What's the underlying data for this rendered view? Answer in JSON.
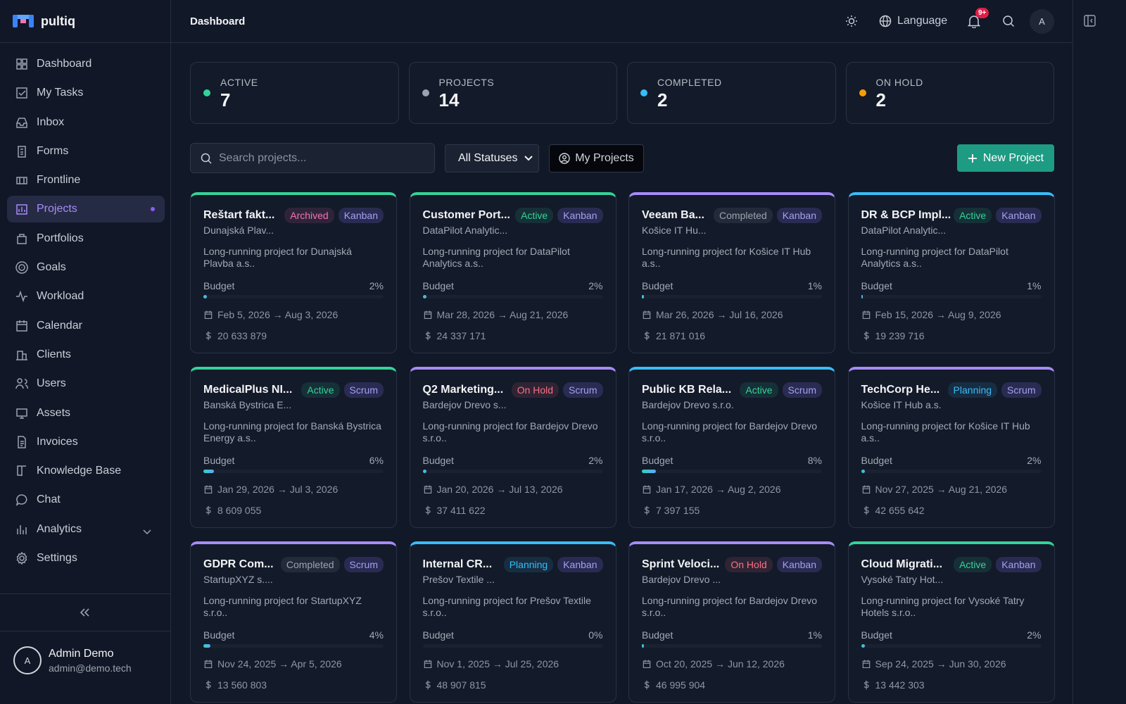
{
  "sidebar": {
    "brand": "pultiq",
    "nav": [
      "Dashboard",
      "My Tasks",
      "Inbox",
      "Forms",
      "Frontline",
      "Projects",
      "Portfolios",
      "Goals",
      "Workload",
      "Calendar",
      "Clients",
      "Users",
      "Assets",
      "Invoices",
      "Knowledge Base",
      "Chat",
      "Analytics",
      "Settings"
    ],
    "user": {
      "initial": "A",
      "name": "Admin Demo",
      "email": "admin@demo.tech"
    }
  },
  "header": {
    "title": "Dashboard",
    "language": "Language",
    "notifications": "9+",
    "avatar": "A"
  },
  "stats": [
    {
      "label": "ACTIVE",
      "value": 7,
      "color": "#34d399"
    },
    {
      "label": "PROJECTS",
      "value": 14,
      "color": "#9ca3af"
    },
    {
      "label": "COMPLETED",
      "value": 2,
      "color": "#38bdf8"
    },
    {
      "label": "ON HOLD",
      "value": 2,
      "color": "#f59e0b"
    }
  ],
  "toolbar": {
    "search": "Search projects...",
    "filter": "All Statuses",
    "mine": "My Projects",
    "new": "New Project"
  },
  "budget_label": "Budget",
  "projects": [
    {
      "name": "Reštart fakt...",
      "status": "Archived",
      "status_color": "#f472b6",
      "method": "Kanban",
      "client": "Dunajská Plav...",
      "description": "Long-running project for Dunajská Plavba a.s..",
      "progress": 2,
      "progress_label": "2%",
      "dates": "Feb 5, 2026 → Aug 3, 2026",
      "budget": "20 633 879",
      "accent": "#34d399"
    },
    {
      "name": "Customer Port...",
      "status": "Active",
      "status_color": "#34d399",
      "method": "Kanban",
      "client": "DataPilot Analytic...",
      "description": "Long-running project for DataPilot Analytics a.s..",
      "progress": 2,
      "progress_label": "2%",
      "dates": "Mar 28, 2026 → Aug 21, 2026",
      "budget": "24 337 171",
      "accent": "#34d399"
    },
    {
      "name": "Veeam Ba...",
      "status": "Completed",
      "status_color": "#9ca3af",
      "method": "Kanban",
      "client": "Košice IT Hu...",
      "description": "Long-running project for Košice IT Hub a.s..",
      "progress": 1,
      "progress_label": "1%",
      "dates": "Mar 26, 2026 → Jul 16, 2026",
      "budget": "21 871 016",
      "accent": "#a78bfa"
    },
    {
      "name": "DR & BCP Impl...",
      "status": "Active",
      "status_color": "#34d399",
      "method": "Kanban",
      "client": "DataPilot Analytic...",
      "description": "Long-running project for DataPilot Analytics a.s..",
      "progress": 1,
      "progress_label": "1%",
      "dates": "Feb 15, 2026 → Aug 9, 2026",
      "budget": "19 239 716",
      "accent": "#38bdf8"
    },
    {
      "name": "MedicalPlus NI...",
      "status": "Active",
      "status_color": "#34d399",
      "method": "Scrum",
      "client": "Banská Bystrica E...",
      "description": "Long-running project for Banská Bystrica Energy a.s..",
      "progress": 6,
      "progress_label": "6%",
      "dates": "Jan 29, 2026 → Jul 3, 2026",
      "budget": "8 609 055",
      "accent": "#34d399"
    },
    {
      "name": "Q2 Marketing...",
      "status": "On Hold",
      "status_color": "#fb7185",
      "method": "Scrum",
      "client": "Bardejov Drevo s...",
      "description": "Long-running project for Bardejov Drevo s.r.o..",
      "progress": 2,
      "progress_label": "2%",
      "dates": "Jan 20, 2026 → Jul 13, 2026",
      "budget": "37 411 622",
      "accent": "#a78bfa"
    },
    {
      "name": "Public KB Rela...",
      "status": "Active",
      "status_color": "#34d399",
      "method": "Scrum",
      "client": "Bardejov Drevo s.r.o.",
      "description": "Long-running project for Bardejov Drevo s.r.o..",
      "progress": 8,
      "progress_label": "8%",
      "dates": "Jan 17, 2026 → Aug 2, 2026",
      "budget": "7 397 155",
      "accent": "#38bdf8"
    },
    {
      "name": "TechCorp He...",
      "status": "Planning",
      "status_color": "#38bdf8",
      "method": "Scrum",
      "client": "Košice IT Hub a.s.",
      "description": "Long-running project for Košice IT Hub a.s..",
      "progress": 2,
      "progress_label": "2%",
      "dates": "Nov 27, 2025 → Aug 21, 2026",
      "budget": "42 655 642",
      "accent": "#a78bfa"
    },
    {
      "name": "GDPR Com...",
      "status": "Completed",
      "status_color": "#9ca3af",
      "method": "Scrum",
      "client": "StartupXYZ s....",
      "description": "Long-running project for StartupXYZ s.r.o..",
      "progress": 4,
      "progress_label": "4%",
      "dates": "Nov 24, 2025 → Apr 5, 2026",
      "budget": "13 560 803",
      "accent": "#a78bfa"
    },
    {
      "name": "Internal CR...",
      "status": "Planning",
      "status_color": "#38bdf8",
      "method": "Kanban",
      "client": "Prešov Textile ...",
      "description": "Long-running project for Prešov Textile s.r.o..",
      "progress": 0,
      "progress_label": "0%",
      "dates": "Nov 1, 2025 → Jul 25, 2026",
      "budget": "48 907 815",
      "accent": "#38bdf8"
    },
    {
      "name": "Sprint Veloci...",
      "status": "On Hold",
      "status_color": "#fb7185",
      "method": "Kanban",
      "client": "Bardejov Drevo ...",
      "description": "Long-running project for Bardejov Drevo s.r.o..",
      "progress": 1,
      "progress_label": "1%",
      "dates": "Oct 20, 2025 → Jun 12, 2026",
      "budget": "46 995 904",
      "accent": "#a78bfa"
    },
    {
      "name": "Cloud Migrati...",
      "status": "Active",
      "status_color": "#34d399",
      "method": "Kanban",
      "client": "Vysoké Tatry Hot...",
      "description": "Long-running project for Vysoké Tatry Hotels s.r.o..",
      "progress": 2,
      "progress_label": "2%",
      "dates": "Sep 24, 2025 → Jun 30, 2026",
      "budget": "13 442 303",
      "accent": "#34d399"
    }
  ]
}
